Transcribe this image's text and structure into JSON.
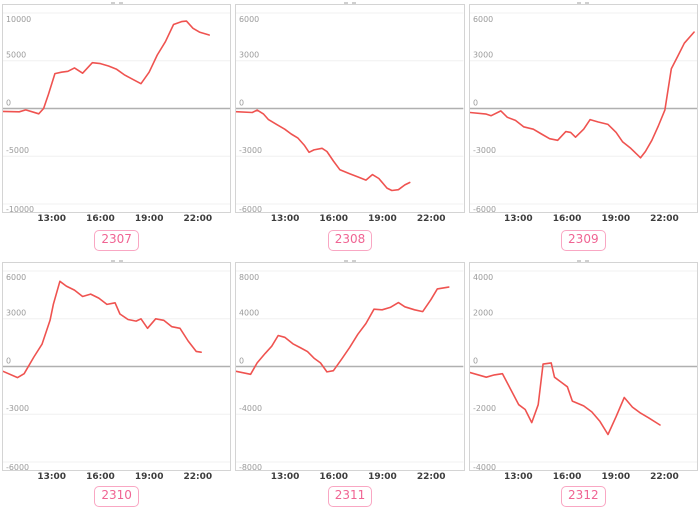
{
  "meta": {
    "line_color": "#ef5350",
    "zero_line_color": "#b0b0b0",
    "grid_color": "#f0f0f0",
    "box_border_color": "#d4d4d4",
    "badge_text_color": "#f06493",
    "badge_border_color": "#f9a7c3"
  },
  "x_axis": {
    "domain": [
      10,
      24
    ],
    "ticks": [
      {
        "value": 13,
        "label": "13:00"
      },
      {
        "value": 16,
        "label": "16:00"
      },
      {
        "value": 19,
        "label": "19:00"
      },
      {
        "value": 22,
        "label": "22:00"
      }
    ]
  },
  "chart_data": [
    {
      "type": "line",
      "badge": "2307",
      "ylim": [
        -10000,
        10000
      ],
      "yticks": [
        10000,
        5000,
        0,
        -5000,
        -10000
      ],
      "ytick_labels": [
        "10000",
        "5000",
        "0",
        "-5000",
        "-10000"
      ],
      "points": [
        [
          10.0,
          -300
        ],
        [
          11.0,
          -350
        ],
        [
          11.4,
          -150
        ],
        [
          11.9,
          -400
        ],
        [
          12.2,
          -550
        ],
        [
          12.5,
          0
        ],
        [
          12.8,
          1500
        ],
        [
          13.2,
          3650
        ],
        [
          13.6,
          3800
        ],
        [
          14.0,
          3900
        ],
        [
          14.4,
          4250
        ],
        [
          14.9,
          3700
        ],
        [
          15.5,
          4800
        ],
        [
          16.0,
          4700
        ],
        [
          16.5,
          4450
        ],
        [
          17.0,
          4100
        ],
        [
          17.5,
          3500
        ],
        [
          18.0,
          3050
        ],
        [
          18.5,
          2600
        ],
        [
          19.0,
          3800
        ],
        [
          19.5,
          5600
        ],
        [
          20.0,
          7000
        ],
        [
          20.5,
          8800
        ],
        [
          21.0,
          9100
        ],
        [
          21.3,
          9150
        ],
        [
          21.7,
          8400
        ],
        [
          22.1,
          8000
        ],
        [
          22.7,
          7700
        ]
      ]
    },
    {
      "type": "line",
      "badge": "2308",
      "ylim": [
        -6000,
        6000
      ],
      "yticks": [
        6000,
        3000,
        0,
        -3000,
        -6000
      ],
      "ytick_labels": [
        "6000",
        "3000",
        "0",
        "-3000",
        "-6000"
      ],
      "points": [
        [
          10.0,
          -200
        ],
        [
          11.0,
          -250
        ],
        [
          11.3,
          -100
        ],
        [
          11.7,
          -350
        ],
        [
          12.0,
          -700
        ],
        [
          12.5,
          -1000
        ],
        [
          13.0,
          -1300
        ],
        [
          13.4,
          -1600
        ],
        [
          13.8,
          -1850
        ],
        [
          14.2,
          -2300
        ],
        [
          14.5,
          -2750
        ],
        [
          14.8,
          -2600
        ],
        [
          15.3,
          -2500
        ],
        [
          15.6,
          -2700
        ],
        [
          16.0,
          -3300
        ],
        [
          16.4,
          -3850
        ],
        [
          17.0,
          -4100
        ],
        [
          17.5,
          -4300
        ],
        [
          18.0,
          -4500
        ],
        [
          18.4,
          -4150
        ],
        [
          18.8,
          -4400
        ],
        [
          19.3,
          -5000
        ],
        [
          19.6,
          -5150
        ],
        [
          20.0,
          -5100
        ],
        [
          20.4,
          -4800
        ],
        [
          20.7,
          -4650
        ]
      ]
    },
    {
      "type": "line",
      "badge": "2309",
      "ylim": [
        -6000,
        6000
      ],
      "yticks": [
        6000,
        3000,
        0,
        -3000,
        -6000
      ],
      "ytick_labels": [
        "6000",
        "3000",
        "0",
        "-3000",
        "-6000"
      ],
      "points": [
        [
          10.0,
          -250
        ],
        [
          11.0,
          -350
        ],
        [
          11.3,
          -450
        ],
        [
          11.9,
          -150
        ],
        [
          12.3,
          -550
        ],
        [
          12.8,
          -750
        ],
        [
          13.3,
          -1150
        ],
        [
          13.9,
          -1300
        ],
        [
          14.4,
          -1600
        ],
        [
          14.9,
          -1900
        ],
        [
          15.4,
          -2000
        ],
        [
          15.9,
          -1450
        ],
        [
          16.2,
          -1500
        ],
        [
          16.5,
          -1800
        ],
        [
          17.0,
          -1300
        ],
        [
          17.4,
          -700
        ],
        [
          17.9,
          -850
        ],
        [
          18.5,
          -1000
        ],
        [
          19.0,
          -1500
        ],
        [
          19.4,
          -2100
        ],
        [
          19.9,
          -2500
        ],
        [
          20.5,
          -3100
        ],
        [
          20.8,
          -2700
        ],
        [
          21.2,
          -2000
        ],
        [
          21.6,
          -1100
        ],
        [
          22.0,
          -100
        ],
        [
          22.4,
          2500
        ],
        [
          22.8,
          3300
        ],
        [
          23.2,
          4100
        ],
        [
          23.8,
          4800
        ]
      ]
    },
    {
      "type": "line",
      "badge": "2310",
      "ylim": [
        -6000,
        6000
      ],
      "yticks": [
        6000,
        3000,
        0,
        -3000,
        -6000
      ],
      "ytick_labels": [
        "6000",
        "3000",
        "0",
        "-3000",
        "-6000"
      ],
      "points": [
        [
          10.0,
          -300
        ],
        [
          10.9,
          -700
        ],
        [
          11.3,
          -450
        ],
        [
          11.9,
          600
        ],
        [
          12.4,
          1400
        ],
        [
          12.9,
          2900
        ],
        [
          13.1,
          3900
        ],
        [
          13.5,
          5350
        ],
        [
          13.9,
          5050
        ],
        [
          14.4,
          4800
        ],
        [
          14.9,
          4400
        ],
        [
          15.4,
          4550
        ],
        [
          15.9,
          4300
        ],
        [
          16.4,
          3900
        ],
        [
          16.9,
          4000
        ],
        [
          17.2,
          3300
        ],
        [
          17.7,
          2950
        ],
        [
          18.2,
          2850
        ],
        [
          18.5,
          3000
        ],
        [
          18.9,
          2400
        ],
        [
          19.4,
          3000
        ],
        [
          19.9,
          2900
        ],
        [
          20.4,
          2500
        ],
        [
          20.9,
          2400
        ],
        [
          21.4,
          1600
        ],
        [
          21.9,
          950
        ],
        [
          22.2,
          900
        ]
      ]
    },
    {
      "type": "line",
      "badge": "2311",
      "ylim": [
        -8000,
        8000
      ],
      "yticks": [
        8000,
        4000,
        0,
        -4000,
        -8000
      ],
      "ytick_labels": [
        "8000",
        "4000",
        "0",
        "-4000",
        "-8000"
      ],
      "points": [
        [
          10.0,
          -400
        ],
        [
          10.9,
          -650
        ],
        [
          11.3,
          300
        ],
        [
          11.8,
          1100
        ],
        [
          12.2,
          1700
        ],
        [
          12.6,
          2600
        ],
        [
          13.0,
          2450
        ],
        [
          13.5,
          1900
        ],
        [
          14.0,
          1550
        ],
        [
          14.4,
          1250
        ],
        [
          14.8,
          700
        ],
        [
          15.2,
          300
        ],
        [
          15.6,
          -450
        ],
        [
          16.0,
          -350
        ],
        [
          16.5,
          600
        ],
        [
          17.0,
          1600
        ],
        [
          17.5,
          2700
        ],
        [
          18.0,
          3600
        ],
        [
          18.5,
          4800
        ],
        [
          19.0,
          4750
        ],
        [
          19.5,
          4950
        ],
        [
          20.0,
          5350
        ],
        [
          20.4,
          5000
        ],
        [
          21.0,
          4750
        ],
        [
          21.5,
          4600
        ],
        [
          22.0,
          5600
        ],
        [
          22.4,
          6500
        ],
        [
          23.1,
          6650
        ]
      ]
    },
    {
      "type": "line",
      "badge": "2312",
      "ylim": [
        -4000,
        4000
      ],
      "yticks": [
        4000,
        2000,
        0,
        -2000,
        -4000
      ],
      "ytick_labels": [
        "4000",
        "2000",
        "0",
        "-2000",
        "-4000"
      ],
      "points": [
        [
          10.0,
          -250
        ],
        [
          11.0,
          -450
        ],
        [
          11.5,
          -350
        ],
        [
          12.0,
          -300
        ],
        [
          12.5,
          -950
        ],
        [
          13.0,
          -1600
        ],
        [
          13.4,
          -1800
        ],
        [
          13.8,
          -2350
        ],
        [
          14.2,
          -1600
        ],
        [
          14.5,
          100
        ],
        [
          15.0,
          150
        ],
        [
          15.2,
          -450
        ],
        [
          15.6,
          -650
        ],
        [
          16.0,
          -850
        ],
        [
          16.3,
          -1450
        ],
        [
          17.0,
          -1650
        ],
        [
          17.5,
          -1900
        ],
        [
          18.0,
          -2300
        ],
        [
          18.5,
          -2850
        ],
        [
          19.0,
          -2100
        ],
        [
          19.5,
          -1300
        ],
        [
          20.0,
          -1700
        ],
        [
          20.5,
          -1950
        ],
        [
          21.0,
          -2150
        ],
        [
          21.7,
          -2450
        ]
      ]
    }
  ]
}
